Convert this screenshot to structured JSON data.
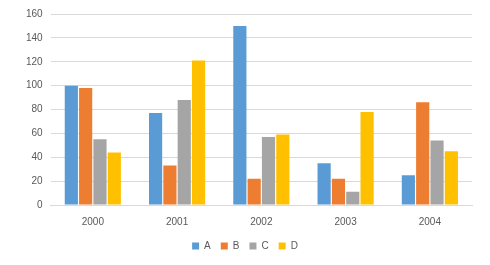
{
  "chart_data": {
    "type": "bar",
    "categories": [
      "2000",
      "2001",
      "2002",
      "2003",
      "2004"
    ],
    "series": [
      {
        "name": "A",
        "color": "#5b9bd5",
        "values": [
          100,
          77,
          150,
          35,
          25
        ]
      },
      {
        "name": "B",
        "color": "#ed7d31",
        "values": [
          98,
          33,
          22,
          22,
          86
        ]
      },
      {
        "name": "C",
        "color": "#a5a5a5",
        "values": [
          55,
          88,
          57,
          11,
          54
        ]
      },
      {
        "name": "D",
        "color": "#ffc000",
        "values": [
          44,
          121,
          59,
          78,
          45
        ]
      }
    ],
    "ylim": [
      0,
      160
    ],
    "yticks": [
      0,
      20,
      40,
      60,
      80,
      100,
      120,
      140,
      160
    ],
    "grid": true,
    "legend": "bottom"
  }
}
